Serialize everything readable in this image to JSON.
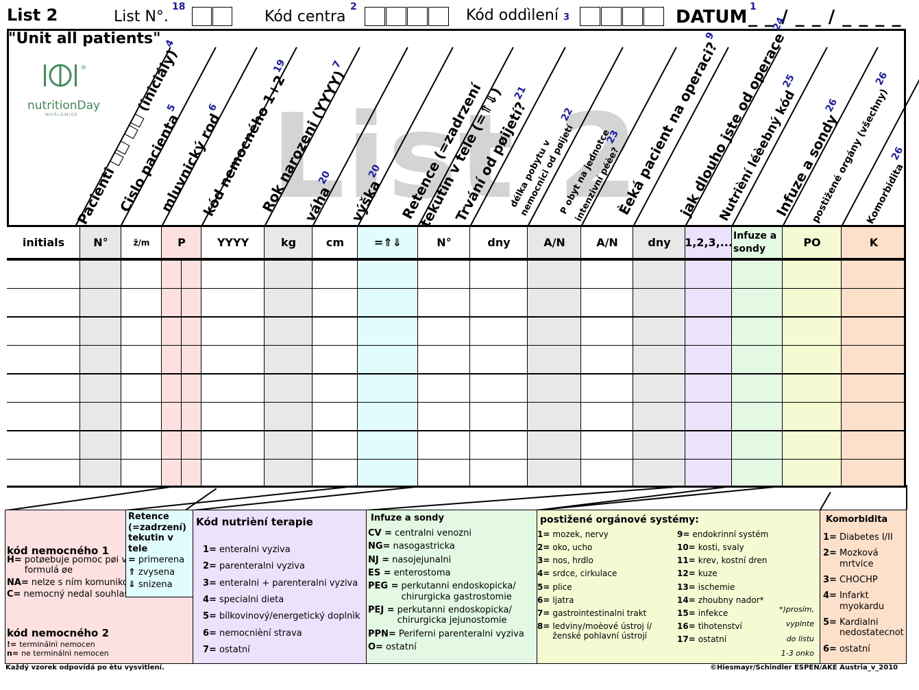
{
  "header": {
    "title": "List 2",
    "list_no_label": "List N°.",
    "list_no_num": "18",
    "center_label": "Kód centra",
    "center_num": "2",
    "ward_label": "Kód oddìlení",
    "ward_num": "3",
    "date_label": "DATUM",
    "date_num": "1",
    "date_mask": "_ _ / _ _ / _ _ _ _"
  },
  "subtitle": "\"Unit all patients\"",
  "logo": {
    "name": "nutritionDay",
    "sub": "WORLDWIDE",
    "reg": "®"
  },
  "watermark": "List 2",
  "column_headers": [
    {
      "text": "Pacienti □□ □□ (iniciály)",
      "num": "4"
    },
    {
      "text": "Cislo pacienta",
      "num": "5"
    },
    {
      "text": "mluvnický rod",
      "num": "6"
    },
    {
      "text": "kód nemocného 1+2",
      "num": "19"
    },
    {
      "text": "Rok narozeni (YYYY)",
      "num": "7"
    },
    {
      "text": "váha",
      "num": "20"
    },
    {
      "text": "výška",
      "num": "20"
    },
    {
      "text": "Retence (=zadrzení",
      "num": ""
    },
    {
      "text": "tekutin v tele (=⇑⇓)",
      "num": ""
    },
    {
      "text": "Trvání od pøijetí?",
      "num": "21"
    },
    {
      "text": "délka pobytu v",
      "num": ""
    },
    {
      "text": "nemocnici od pøijetí",
      "num": "22"
    },
    {
      "text": "P obyt na jednotce",
      "num": ""
    },
    {
      "text": "intenzivní péèe?",
      "num": "23"
    },
    {
      "text": "Èeká pacient na operaci?",
      "num": "9"
    },
    {
      "text": "jak dlouho jste od operace",
      "num": "24"
    },
    {
      "text": "Nutrièní léèebný kód",
      "num": "25"
    },
    {
      "text": "Infuze a sondy",
      "num": "26"
    },
    {
      "text": "postižené orgány (všechny)",
      "num": "26"
    },
    {
      "text": "Komorbidita",
      "num": "26"
    }
  ],
  "units": [
    "initials",
    "N°",
    "ž/m",
    "P",
    "YYYY",
    "kg",
    "cm",
    "=⇑⇓",
    "N°",
    "dny",
    "A/N",
    "A/N",
    "dny",
    "1,2,3,...",
    "Infuze a sondy",
    "PO",
    "K"
  ],
  "colors": {
    "pink": "#fde0e0",
    "gray": "#e8e8e8",
    "cyan": "#e1fcfd",
    "lavender": "#ece2fb",
    "mint": "#e3f9e3",
    "yellow": "#f5fad3",
    "peach": "#fde0c9"
  },
  "legend": {
    "patient_code": {
      "title1": "kód nemocného 1",
      "items1": [
        {
          "k": "H=",
          "v": "potøebuje pomoc pøi vyplnìní formulá øe"
        },
        {
          "k": "NA=",
          "v": "nelze s ním komunikovat"
        },
        {
          "k": "C=",
          "v": "nemocný nedal souhlas"
        }
      ],
      "title2": "kód nemocného 2",
      "items2": [
        {
          "k": "!=",
          "v": "terminálnì nemocen"
        },
        {
          "k": "n=",
          "v": "ne  terminálnì nemocen"
        }
      ]
    },
    "retention": {
      "title": "Retence (=zadrzení) tekutin v tele",
      "items": [
        {
          "k": "=",
          "v": "primerena"
        },
        {
          "k": "⇑",
          "v": "zvysena"
        },
        {
          "k": "⇓",
          "v": "snizena"
        }
      ]
    },
    "nutrition": {
      "title": "Kód nutrièní terapie",
      "items": [
        {
          "k": "1=",
          "v": "enteralni vyziva"
        },
        {
          "k": "2=",
          "v": "parenteralni vyziva"
        },
        {
          "k": "3=",
          "v": "enteralni + parenteralni vyziva"
        },
        {
          "k": "4=",
          "v": "specialni dieta"
        },
        {
          "k": "5=",
          "v": "bílkovinový/energetický doplnìk"
        },
        {
          "k": "6=",
          "v": "nemocnièní strava"
        },
        {
          "k": "7=",
          "v": "ostatní"
        }
      ]
    },
    "infusion": {
      "title": "Infuze a sondy",
      "items": [
        {
          "k": "CV =",
          "v": "centralni venozni"
        },
        {
          "k": "NG=",
          "v": "nasogastricka"
        },
        {
          "k": "NJ =",
          "v": "nasojejunalni"
        },
        {
          "k": "ES =",
          "v": "enterostoma"
        },
        {
          "k": "PEG =",
          "v": "perkutanni endoskopicka/ chirurgicka gastrostomie"
        },
        {
          "k": "PEJ =",
          "v": "perkutanni endoskopicka/ chirurgicka jejunostomie"
        },
        {
          "k": "PPN=",
          "v": "Periferni parenteralni vyziva"
        },
        {
          "k": "O=",
          "v": "ostatní"
        }
      ]
    },
    "organs": {
      "title": "postižené orgánové systémy:",
      "left": [
        {
          "k": "1=",
          "v": "mozek, nervy"
        },
        {
          "k": "2=",
          "v": "oko, ucho"
        },
        {
          "k": "3=",
          "v": "nos, hrdlo"
        },
        {
          "k": "4=",
          "v": "srdce, cirkulace"
        },
        {
          "k": "5=",
          "v": "plice"
        },
        {
          "k": "6=",
          "v": "ljatra"
        },
        {
          "k": "7=",
          "v": "gastrointestinalni trakt"
        },
        {
          "k": "8=",
          "v": "ledviny/moèové ústroj í/ženské pohlavní ústrojí"
        }
      ],
      "right": [
        {
          "k": "9=",
          "v": "endokrinní systém"
        },
        {
          "k": "10=",
          "v": "kosti, svaly"
        },
        {
          "k": "11=",
          "v": "krev, kostní dren"
        },
        {
          "k": "12=",
          "v": "kuze"
        },
        {
          "k": "13=",
          "v": "ischemie"
        },
        {
          "k": "14=",
          "v": "zhoubny nador*"
        },
        {
          "k": "15=",
          "v": "infekce"
        },
        {
          "k": "16=",
          "v": "tìhotenství"
        },
        {
          "k": "17=",
          "v": "ostatní"
        }
      ],
      "note": [
        "*)prosím,",
        "vyplnte",
        "do listu",
        "1-3 onko"
      ]
    },
    "comorbidity": {
      "title": "Komorbidita",
      "items": [
        {
          "k": "1=",
          "v": "Diabetes I/II"
        },
        {
          "k": "2=",
          "v": "Mozková mrtvice"
        },
        {
          "k": "3=",
          "v": "CHOCHP"
        },
        {
          "k": "4=",
          "v": "Infarkt myokardu"
        },
        {
          "k": "5=",
          "v": "Kardialni nedostatecnot"
        },
        {
          "k": "6=",
          "v": "ostatní"
        }
      ]
    }
  },
  "footer": {
    "left": "Každý vzorek odpovídá po ètu vysvìtlení.",
    "right": "©Hiesmayr/Schindler  ESPEN/AKE Austria_v_2010"
  }
}
